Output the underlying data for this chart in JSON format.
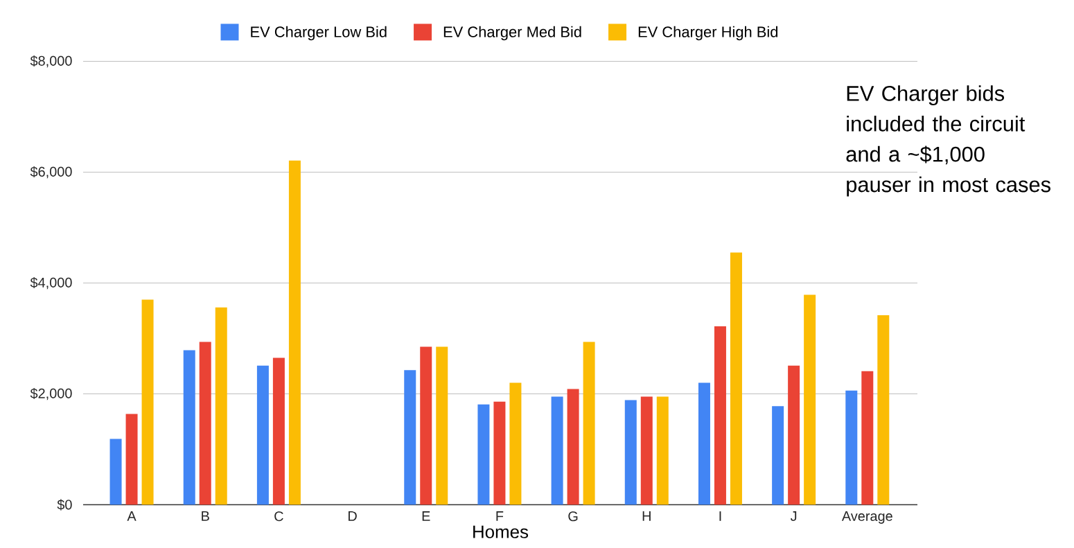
{
  "chart_data": {
    "type": "bar",
    "xlabel": "Homes",
    "categories": [
      "A",
      "B",
      "C",
      "D",
      "E",
      "F",
      "G",
      "H",
      "I",
      "J",
      "Average"
    ],
    "series": [
      {
        "name": "EV Charger Low Bid",
        "color": "#4285f4",
        "values": [
          1190,
          2790,
          2510,
          null,
          2430,
          1810,
          1950,
          1890,
          2200,
          1780,
          2060
        ]
      },
      {
        "name": "EV Charger Med Bid",
        "color": "#ea4335",
        "values": [
          1640,
          2940,
          2650,
          null,
          2850,
          1860,
          2090,
          1950,
          3220,
          2510,
          2410
        ]
      },
      {
        "name": "EV Charger High Bid",
        "color": "#fbbc04",
        "values": [
          3700,
          3560,
          6210,
          null,
          2850,
          2200,
          2940,
          1950,
          4550,
          3790,
          3420
        ]
      }
    ],
    "ylim": [
      0,
      8000
    ],
    "yticks": [
      {
        "value": 0,
        "label": "$0"
      },
      {
        "value": 2000,
        "label": "$2,000"
      },
      {
        "value": 4000,
        "label": "$4,000"
      },
      {
        "value": 6000,
        "label": "$6,000"
      },
      {
        "value": 8000,
        "label": "$8,000"
      }
    ],
    "grid": "y",
    "legend": "top",
    "annotations": [
      "EV Charger bids included the circuit and a ~$1,000 pauser in most cases"
    ]
  }
}
